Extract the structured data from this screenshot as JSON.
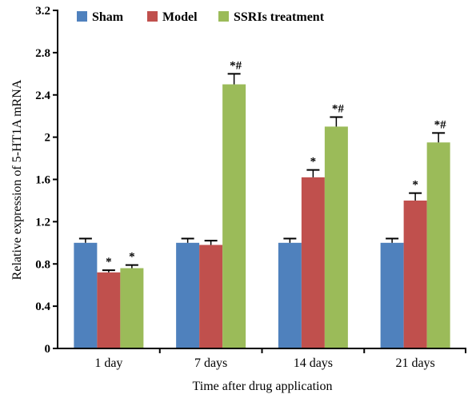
{
  "chart_data": {
    "type": "bar",
    "title": "",
    "xlabel": "Time after drug application",
    "ylabel": "Relative expression of 5-HT1A mRNA",
    "categories": [
      "1 day",
      "7 days",
      "14 days",
      "21 days"
    ],
    "ylim": [
      0,
      3.2
    ],
    "yticks": [
      "0",
      "0.4",
      "0.8",
      "1.2",
      "1.6",
      "2",
      "2.4",
      "2.8",
      "3.2"
    ],
    "grid": false,
    "legend_position": "top-left",
    "series": [
      {
        "name": "Sham",
        "color": "#4f81bd",
        "values": [
          1.0,
          1.0,
          1.0,
          1.0
        ],
        "errors": [
          0.04,
          0.04,
          0.04,
          0.04
        ],
        "annotations": [
          "",
          "",
          "",
          ""
        ]
      },
      {
        "name": "Model",
        "color": "#c0504d",
        "values": [
          0.72,
          0.98,
          1.62,
          1.4
        ],
        "errors": [
          0.02,
          0.04,
          0.07,
          0.07
        ],
        "annotations": [
          "*",
          "",
          "*",
          "*"
        ]
      },
      {
        "name": "SSRIs treatment",
        "color": "#9bbb59",
        "values": [
          0.76,
          2.5,
          2.1,
          1.95
        ],
        "errors": [
          0.03,
          0.1,
          0.09,
          0.09
        ],
        "annotations": [
          "*",
          "*#",
          "*#",
          "*#"
        ]
      }
    ]
  }
}
